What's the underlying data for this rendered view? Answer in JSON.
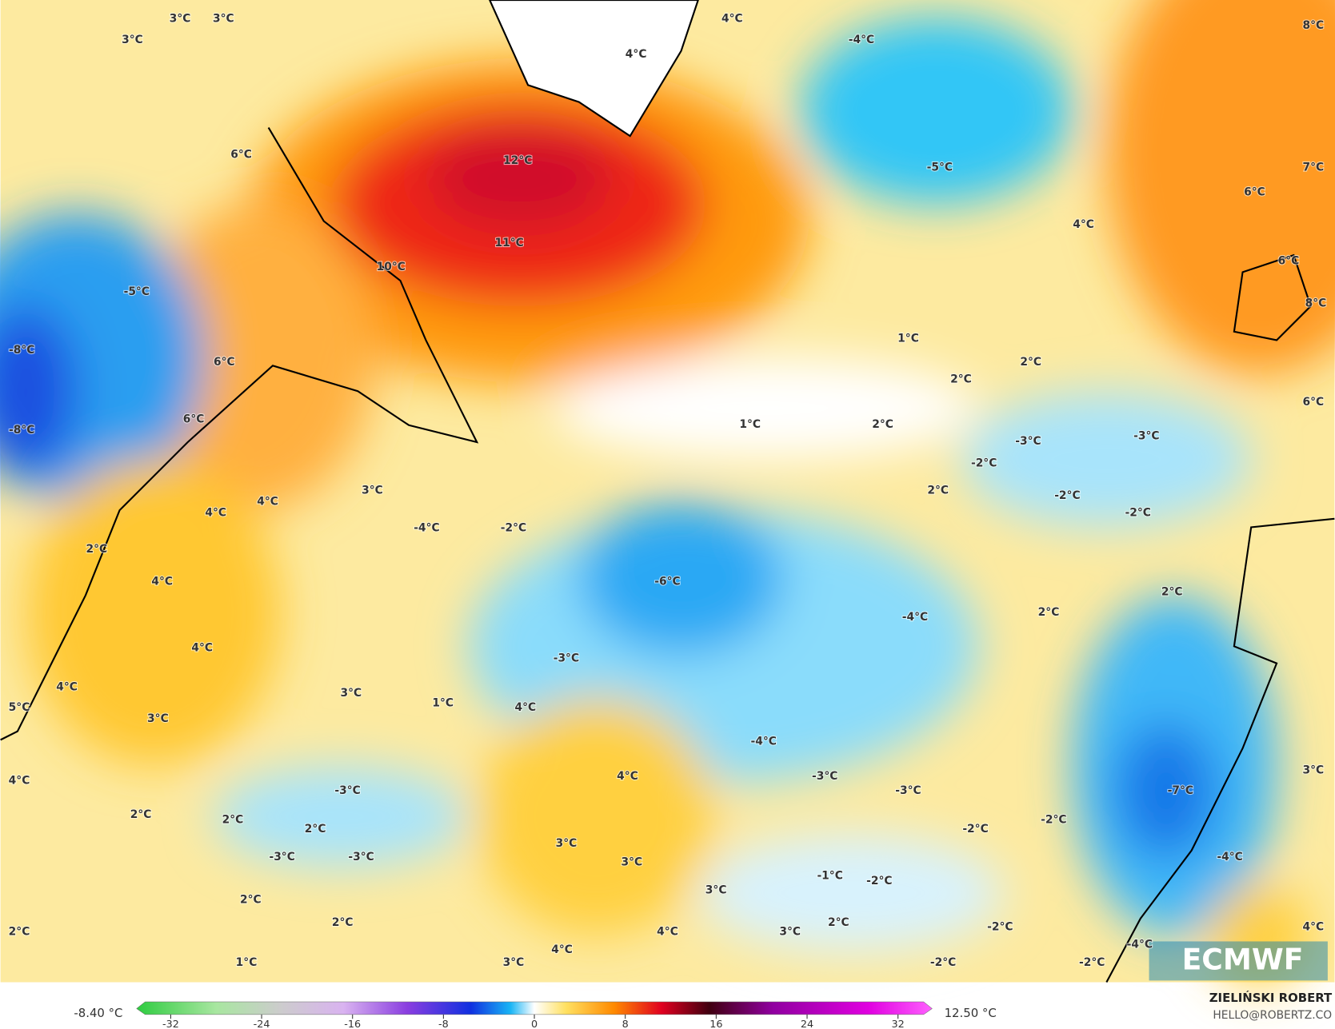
{
  "map": {
    "labels": [
      "3°C",
      "3°C",
      "3°C",
      "4°C",
      "4°C",
      "-4°C",
      "8°C",
      "6°C",
      "12°C",
      "-5°C",
      "7°C",
      "6°C",
      "11°C",
      "4°C",
      "10°C",
      "6°C",
      "-5°C",
      "8°C",
      "-8°C",
      "1°C",
      "6°C",
      "2°C",
      "2°C",
      "6°C",
      "1°C",
      "2°C",
      "-8°C",
      "-3°C",
      "-3°C",
      "6°C",
      "-2°C",
      "3°C",
      "2°C",
      "-2°C",
      "4°C",
      "4°C",
      "-2°C",
      "-4°C",
      "-2°C",
      "2°C",
      "-6°C",
      "4°C",
      "2°C",
      "2°C",
      "-4°C",
      "4°C",
      "-3°C",
      "4°C",
      "3°C",
      "5°C",
      "1°C",
      "4°C",
      "3°C",
      "-4°C",
      "4°C",
      "-3°C",
      "4°C",
      "-3°C",
      "-3°C",
      "-7°C",
      "2°C",
      "2°C",
      "-2°C",
      "2°C",
      "-2°C",
      "3°C",
      "-3°C",
      "-3°C",
      "3°C",
      "3°C",
      "-4°C",
      "-1°C",
      "-2°C",
      "3°C",
      "2°C",
      "2°C",
      "2°C",
      "-2°C",
      "3°C",
      "4°C",
      "4°C",
      "4°C",
      "-4°C",
      "2°C",
      "1°C",
      "3°C",
      "-2°C",
      "-2°C"
    ],
    "logo": "ECMWF"
  },
  "colorbar": {
    "lim": [
      -35,
      35
    ],
    "ticks": [
      -32,
      -24,
      -16,
      -8,
      0,
      8,
      16,
      24,
      32
    ],
    "min_label": "-8.40 °C",
    "max_label": "12.50 °C"
  },
  "credit": {
    "name": "ZIELIŃSKI ROBERT",
    "contact": "HELLO@ROBERTZ.CO"
  }
}
